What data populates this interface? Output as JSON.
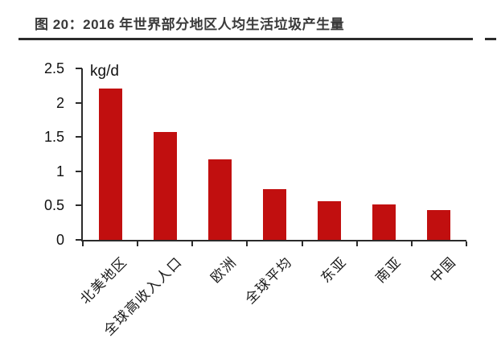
{
  "figure": {
    "title": "图 20：2016 年世界部分地区人均生活垃圾产生量"
  },
  "chart_data": {
    "type": "bar",
    "title": "2016 年世界部分地区人均生活垃圾产生量",
    "unit_label": "kg/d",
    "categories": [
      "北美地区",
      "全球高收入人口",
      "欧洲",
      "全球平均",
      "东亚",
      "南亚",
      "中国"
    ],
    "values": [
      2.21,
      1.57,
      1.17,
      0.74,
      0.56,
      0.52,
      0.44
    ],
    "xlabel": "",
    "ylabel": "kg/d",
    "ylim": [
      0,
      2.5
    ],
    "yticks": [
      0,
      0.5,
      1,
      1.5,
      2,
      2.5
    ],
    "ytick_labels": [
      "0",
      "0.5",
      "1",
      "1.5",
      "2",
      "2.5"
    ],
    "grid": false,
    "legend_position": "none",
    "bar_color": "#c10f0f",
    "axis_color": "#2b2b2b"
  },
  "colors": {
    "background": "#ffffff",
    "title_text": "#3a3a3a",
    "title_rule": "#2b2b2b",
    "axis_text": "#111111"
  }
}
